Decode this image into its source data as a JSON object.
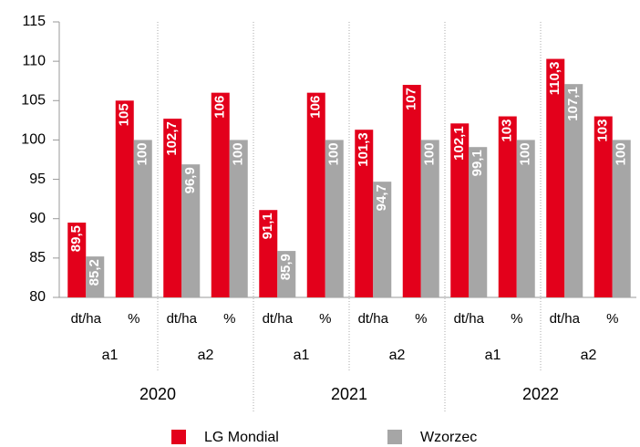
{
  "chart_data": {
    "type": "bar",
    "categories": [
      "dt/ha",
      "%",
      "dt/ha",
      "%",
      "dt/ha",
      "%",
      "dt/ha",
      "%",
      "dt/ha",
      "%",
      "dt/ha",
      "%"
    ],
    "subgroups": [
      "a1",
      "a2",
      "a1",
      "a2",
      "a1",
      "a2"
    ],
    "groups": [
      "2020",
      "2021",
      "2022"
    ],
    "series": [
      {
        "name": "LG Mondial",
        "color": "#e3001b",
        "values": [
          89.5,
          105,
          102.7,
          106,
          91.1,
          106,
          101.3,
          107,
          102.1,
          103,
          110.3,
          103
        ],
        "value_labels": [
          "89,5",
          "105",
          "102,7",
          "106",
          "91,1",
          "106",
          "101,3",
          "107",
          "102,1",
          "103",
          "110,3",
          "103"
        ]
      },
      {
        "name": "Wzorzec",
        "color": "#a6a6a6",
        "values": [
          85.2,
          100,
          96.9,
          100,
          85.9,
          100,
          94.7,
          100,
          99.1,
          100,
          107.1,
          100
        ],
        "value_labels": [
          "85,2",
          "100",
          "96,9",
          "100",
          "85,9",
          "100",
          "94,7",
          "100",
          "99,1",
          "100",
          "107,1",
          "100"
        ]
      }
    ],
    "ylim": [
      80,
      115
    ],
    "yticks": [
      80,
      85,
      90,
      95,
      100,
      105,
      110,
      115
    ]
  }
}
